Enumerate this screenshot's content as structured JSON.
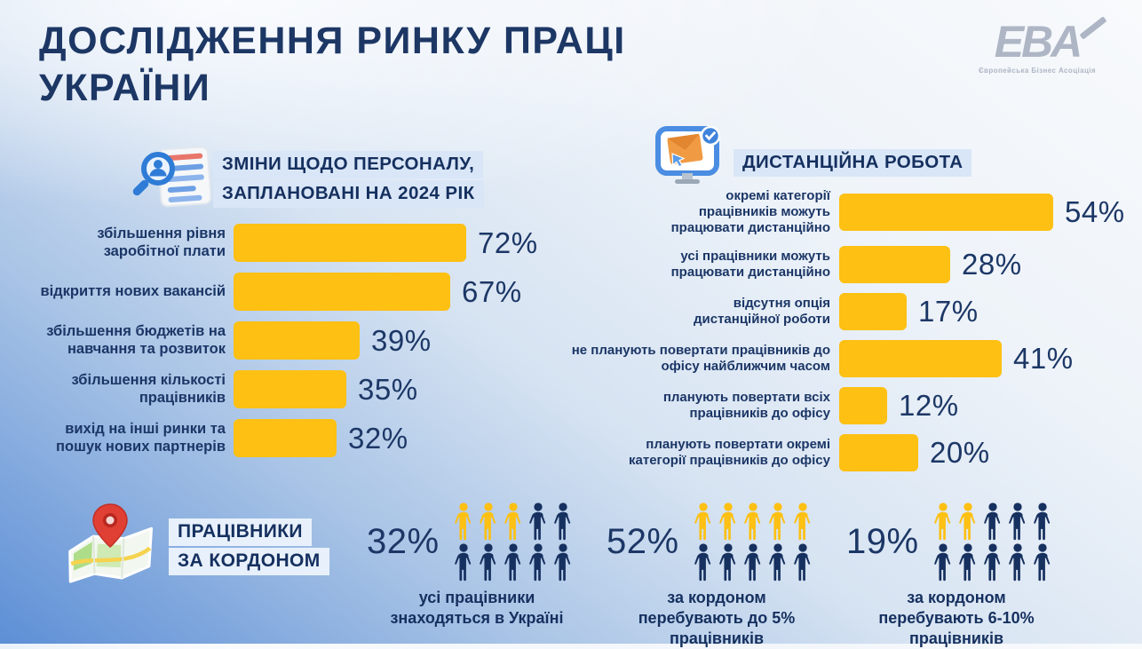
{
  "title": {
    "line1": "ДОСЛІДЖЕННЯ РИНКУ ПРАЦІ",
    "line2": "УКРАЇНИ"
  },
  "logo": {
    "text": "EBA",
    "subtitle": "Європейська Бізнес Асоціація"
  },
  "colors": {
    "navy_text": "#1b3666",
    "bar_yellow": "#fdc013",
    "header_highlight": "#d9e6f7",
    "background_blue": "#5d8fd6",
    "logo_gray": "#aeb6c5",
    "pin_red": "#e03f33"
  },
  "icons": {
    "personnel": "document-search-icon",
    "remote": "monitor-mail-check-icon",
    "abroad": "map-pin-icon"
  },
  "chart_data": [
    {
      "type": "bar",
      "id": "personnel-changes",
      "orientation": "horizontal",
      "title": "ЗМІНИ ЩОДО ПЕРСОНАЛУ, ЗАПЛАНОВАНІ НА 2024 РІК",
      "title_lines": [
        "ЗМІНИ ЩОДО ПЕРСОНАЛУ,",
        "ЗАПЛАНОВАНІ НА 2024 РІК"
      ],
      "unit": "%",
      "xlim": [
        0,
        100
      ],
      "bar_color": "#fdc013",
      "grid": false,
      "categories": [
        "збільшення рівня\nзаробітної плати",
        "відкриття нових вакансій",
        "збільшення бюджетів на\nнавчання та розвиток",
        "збільшення кількості\nпрацівників",
        "вихід на інші ринки та\nпошук нових партнерів"
      ],
      "values": [
        72,
        67,
        39,
        35,
        32
      ]
    },
    {
      "type": "bar",
      "id": "remote-work",
      "orientation": "horizontal",
      "title": "ДИСТАНЦІЙНА РОБОТА",
      "unit": "%",
      "xlim": [
        0,
        100
      ],
      "bar_color": "#fdc013",
      "grid": false,
      "categories": [
        "окремі категорії\nпрацівників можуть\nпрацювати дистанційно",
        "усі працівники можуть\nпрацювати дистанційно",
        "відсутня опція\nдистанційної роботи",
        "не планують повертати працівників до\nофісу найближчим часом",
        "планують повертати всіх\nпрацівників до офісу",
        "планують повертати окремі\nкатегорії працівників до офісу"
      ],
      "values": [
        54,
        28,
        17,
        41,
        12,
        20
      ]
    },
    {
      "type": "pictogram",
      "id": "employees-abroad",
      "title": "ПРАЦІВНИКИ ЗА КОРДОНОМ",
      "title_lines": [
        "ПРАЦІВНИКИ",
        "ЗА КОРДОНОМ"
      ],
      "unit": "%",
      "icons_per_group": 10,
      "highlight_color": "#fdc013",
      "default_color": "#16305f",
      "groups": [
        {
          "value": 32,
          "highlighted_icons": 3,
          "label": "усі працівники\nзнаходяться в Україні"
        },
        {
          "value": 52,
          "highlighted_icons": 5,
          "label": "за кордоном\nперебувають до 5%\nпрацівників"
        },
        {
          "value": 19,
          "highlighted_icons": 2,
          "label": "за кордоном\nперебувають 6-10%\nпрацівників"
        }
      ]
    }
  ]
}
